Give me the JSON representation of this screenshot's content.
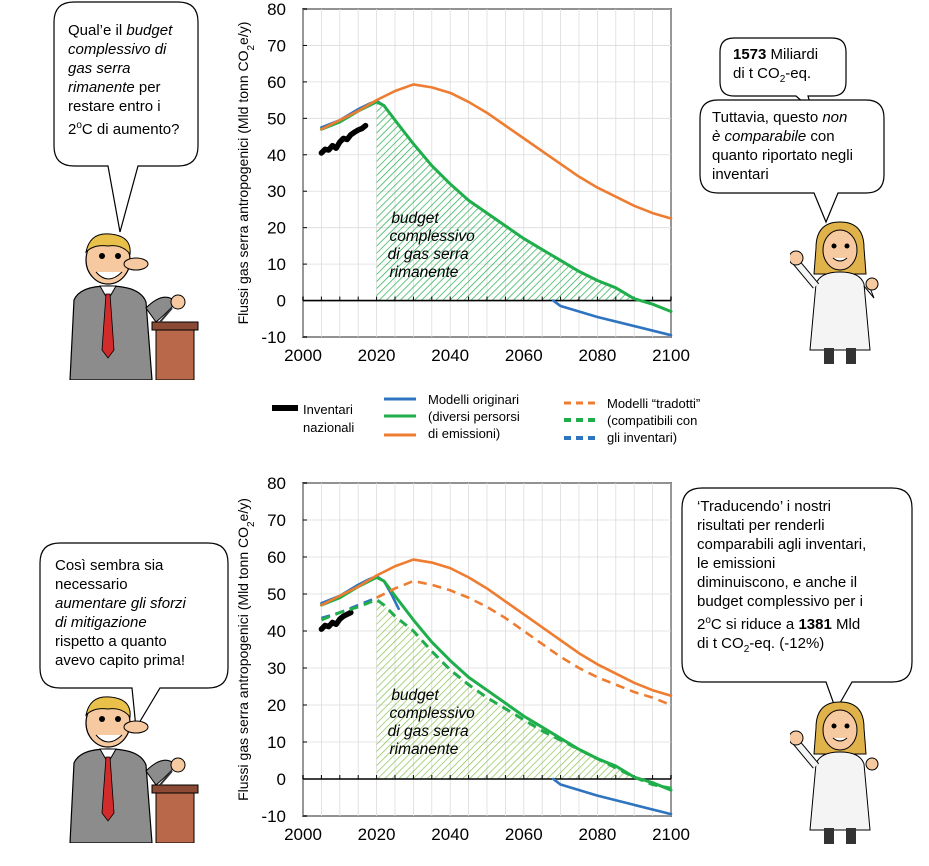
{
  "colors": {
    "inventory": "#000000",
    "blue": "#2f74c0",
    "green": "#1fae4a",
    "orange": "#ee7d32",
    "budget_hatch_top": "#1fae4a",
    "budget_hatch_bottom": "#86c24d"
  },
  "chart_data": [
    {
      "type": "line",
      "ylabel_parts": [
        "Flussi gas serra antropogenici (Mld tonn CO",
        "2",
        "e/y)"
      ],
      "xlim": [
        2000,
        2100
      ],
      "ylim": [
        -10,
        80
      ],
      "xticks": [
        "2000",
        "2020",
        "2040",
        "2060",
        "2080",
        "2100"
      ],
      "yticks": [
        "-10",
        "0",
        "10",
        "20",
        "30",
        "40",
        "50",
        "60",
        "70",
        "80"
      ],
      "grid": true,
      "annotation_lines": [
        "budget",
        "complessivo",
        "di gas serra",
        "rimanente"
      ],
      "series": [
        {
          "key": "inventory",
          "style": "solid",
          "x": [
            2005,
            2006,
            2007,
            2008,
            2009,
            2010,
            2011,
            2012,
            2013,
            2014,
            2015,
            2016,
            2017
          ],
          "y": [
            40.5,
            41.5,
            41.3,
            42.5,
            41.8,
            43.5,
            44.5,
            44.2,
            45.5,
            46.2,
            46.8,
            47.2,
            48.0
          ]
        },
        {
          "key": "blue",
          "style": "solid",
          "x": [
            2005,
            2010,
            2015,
            2018,
            2020,
            2022
          ],
          "y": [
            47.5,
            49.5,
            52.5,
            54.0,
            54.8,
            53.5
          ]
        },
        {
          "key": "blue",
          "style": "solid",
          "x": [
            2068,
            2070,
            2080,
            2090,
            2100
          ],
          "y": [
            0,
            -1.5,
            -4.5,
            -7.0,
            -9.5
          ]
        },
        {
          "key": "green",
          "style": "solid",
          "x": [
            2005,
            2010,
            2015,
            2020,
            2022,
            2025,
            2030,
            2035,
            2040,
            2045,
            2050,
            2055,
            2060,
            2065,
            2070,
            2075,
            2080,
            2085,
            2090,
            2095,
            2100
          ],
          "y": [
            47,
            49,
            52,
            54.5,
            53.5,
            49.5,
            43,
            37,
            32,
            27.5,
            24,
            20.5,
            17,
            14,
            11,
            8,
            5.5,
            3.5,
            0.5,
            -1,
            -3
          ]
        },
        {
          "key": "orange",
          "style": "solid",
          "x": [
            2005,
            2010,
            2015,
            2020,
            2025,
            2030,
            2035,
            2040,
            2045,
            2050,
            2055,
            2060,
            2065,
            2070,
            2075,
            2080,
            2085,
            2090,
            2095,
            2100
          ],
          "y": [
            47,
            49.5,
            52,
            55,
            57.5,
            59.3,
            58.5,
            57,
            54.5,
            51.5,
            48,
            44.5,
            41,
            37.5,
            34,
            31,
            28.5,
            26,
            24,
            22.5
          ]
        }
      ],
      "budget_area": {
        "x": [
          2020,
          2022,
          2025,
          2030,
          2035,
          2040,
          2045,
          2050,
          2055,
          2060,
          2065,
          2070,
          2075,
          2080,
          2085,
          2090
        ],
        "y": [
          54.5,
          53.5,
          49.5,
          43,
          37,
          32,
          27.5,
          24,
          20.5,
          17,
          14,
          11,
          8,
          5.5,
          3.5,
          0.5
        ],
        "color_key": "budget_hatch_top"
      }
    },
    {
      "type": "line",
      "ylabel_parts": [
        "Flussi gas serra antropogenici (Mld tonn CO",
        "2",
        "e/y)"
      ],
      "xlim": [
        2000,
        2100
      ],
      "ylim": [
        -10,
        80
      ],
      "xticks": [
        "2000",
        "2020",
        "2040",
        "2060",
        "2080",
        "2100"
      ],
      "yticks": [
        "-10",
        "0",
        "10",
        "20",
        "30",
        "40",
        "50",
        "60",
        "70",
        "80"
      ],
      "grid": true,
      "annotation_lines": [
        "budget",
        "complessivo",
        "di gas serra",
        "rimanente"
      ],
      "series": [
        {
          "key": "inventory",
          "style": "solid",
          "x": [
            2005,
            2006,
            2007,
            2008,
            2009,
            2010,
            2011,
            2012,
            2013
          ],
          "y": [
            40.5,
            41.5,
            41.2,
            42.3,
            41.8,
            43.2,
            44.0,
            44.5,
            45.0
          ]
        },
        {
          "key": "blue",
          "style": "solid",
          "x": [
            2005,
            2010,
            2015,
            2018,
            2020,
            2022,
            2024,
            2026
          ],
          "y": [
            47.5,
            49.5,
            52.5,
            54.0,
            54.8,
            53.5,
            50.0,
            46.0
          ]
        },
        {
          "key": "blue",
          "style": "dashed",
          "x": [
            2005,
            2010,
            2015,
            2020
          ],
          "y": [
            43.5,
            45,
            47,
            49
          ]
        },
        {
          "key": "blue",
          "style": "solid",
          "x": [
            2068,
            2070,
            2080,
            2090,
            2100
          ],
          "y": [
            0,
            -1.5,
            -4.5,
            -7.0,
            -9.5
          ]
        },
        {
          "key": "green",
          "style": "solid",
          "x": [
            2005,
            2010,
            2015,
            2020,
            2022,
            2025,
            2030,
            2035,
            2040,
            2045,
            2050,
            2055,
            2060,
            2065,
            2070,
            2075,
            2080,
            2085,
            2090,
            2095,
            2100
          ],
          "y": [
            47,
            49,
            52,
            54.5,
            53.5,
            49.5,
            43,
            37,
            32,
            27.5,
            24,
            20.5,
            17,
            14,
            11,
            8,
            5.5,
            3.5,
            0.5,
            -1,
            -3
          ]
        },
        {
          "key": "green",
          "style": "dashed",
          "x": [
            2005,
            2010,
            2015,
            2020,
            2022,
            2025,
            2030,
            2035,
            2040,
            2045,
            2050,
            2055,
            2060,
            2065,
            2070,
            2075,
            2080,
            2085,
            2090,
            2095,
            2100
          ],
          "y": [
            43,
            45,
            46.5,
            48.5,
            47,
            44,
            40,
            34.5,
            29.5,
            25.5,
            22,
            19,
            16,
            13,
            10.5,
            8,
            5.5,
            3,
            0.5,
            -1.5,
            -2.5
          ]
        },
        {
          "key": "orange",
          "style": "solid",
          "x": [
            2005,
            2010,
            2015,
            2020,
            2025,
            2030,
            2035,
            2040,
            2045,
            2050,
            2055,
            2060,
            2065,
            2070,
            2075,
            2080,
            2085,
            2090,
            2095,
            2100
          ],
          "y": [
            47,
            49.5,
            52,
            55,
            57.5,
            59.3,
            58.5,
            57,
            54.5,
            51.5,
            48,
            44.5,
            41,
            37.5,
            34,
            31,
            28.5,
            26,
            24,
            22.5
          ]
        },
        {
          "key": "orange",
          "style": "dashed",
          "x": [
            2020,
            2025,
            2030,
            2035,
            2040,
            2045,
            2050,
            2055,
            2060,
            2065,
            2070,
            2075,
            2080,
            2085,
            2090,
            2095,
            2100
          ],
          "y": [
            49,
            51.5,
            53.5,
            52.5,
            51,
            49,
            46.5,
            43.5,
            40,
            36.5,
            33,
            30,
            27.5,
            25.5,
            23.5,
            22,
            20
          ]
        }
      ],
      "budget_area": {
        "x": [
          2020,
          2022,
          2025,
          2030,
          2035,
          2040,
          2045,
          2050,
          2055,
          2060,
          2065,
          2070,
          2075,
          2080,
          2085,
          2090
        ],
        "y": [
          48.5,
          47,
          44,
          40,
          34.5,
          29.5,
          25.5,
          22,
          19,
          16,
          13,
          10.5,
          8,
          5.5,
          3,
          0.5
        ],
        "color_key": "budget_hatch_bottom"
      }
    }
  ],
  "legend": {
    "inventory": [
      "Inventari",
      "nazionali"
    ],
    "original": [
      "Modelli originari",
      "(diversi persorsi",
      "di emissioni)"
    ],
    "translated": [
      "Modelli “tradotti”",
      "(compatibili con",
      "gli inventari)"
    ]
  },
  "bubbles": {
    "top_left": [
      [
        {
          "t": "Qual’e il "
        },
        {
          "t": "budget",
          "i": true
        }
      ],
      [
        {
          "t": "complessivo di",
          "i": true
        }
      ],
      [
        {
          "t": "gas serra",
          "i": true
        }
      ],
      [
        {
          "t": "rimanente",
          "i": true
        },
        {
          "t": " per"
        }
      ],
      [
        {
          "t": "restare entro i"
        }
      ],
      [
        {
          "t": "2"
        },
        {
          "t": "o",
          "sup": true
        },
        {
          "t": "C di aumento?"
        }
      ]
    ],
    "top_right_small": [
      [
        {
          "t": "1573",
          "b": true
        },
        {
          "t": " Miliardi"
        }
      ],
      [
        {
          "t": "di t CO"
        },
        {
          "t": "2",
          "sub": true
        },
        {
          "t": "-eq."
        }
      ]
    ],
    "top_right": [
      [
        {
          "t": "Tuttavia, questo "
        },
        {
          "t": "non",
          "i": true
        }
      ],
      [
        {
          "t": "è comparabile",
          "i": true
        },
        {
          "t": " con"
        }
      ],
      [
        {
          "t": "quanto riportato negli"
        }
      ],
      [
        {
          "t": "inventari"
        }
      ]
    ],
    "bottom_left": [
      [
        {
          "t": "Così sembra sia"
        }
      ],
      [
        {
          "t": "necessario"
        }
      ],
      [
        {
          "t": "aumentare gli sforzi",
          "i": true
        }
      ],
      [
        {
          "t": "di mitigazione",
          "i": true
        }
      ],
      [
        {
          "t": "rispetto a quanto"
        }
      ],
      [
        {
          "t": "avevo capito prima!"
        }
      ]
    ],
    "bottom_right": [
      [
        {
          "t": "‘Traducendo’ i nostri"
        }
      ],
      [
        {
          "t": "risultati per renderli"
        }
      ],
      [
        {
          "t": "comparabili agli inventari,"
        }
      ],
      [
        {
          "t": "le emissioni"
        }
      ],
      [
        {
          "t": "diminuiscono, e anche il"
        }
      ],
      [
        {
          "t": "budget complessivo per i"
        }
      ],
      [
        {
          "t": "2"
        },
        {
          "t": "o",
          "sup": true
        },
        {
          "t": "C si riduce a "
        },
        {
          "t": "1381",
          "b": true
        },
        {
          "t": " Mld"
        }
      ],
      [
        {
          "t": "di t CO"
        },
        {
          "t": "2",
          "sub": true
        },
        {
          "t": "-eq. (-12%)"
        }
      ]
    ]
  }
}
